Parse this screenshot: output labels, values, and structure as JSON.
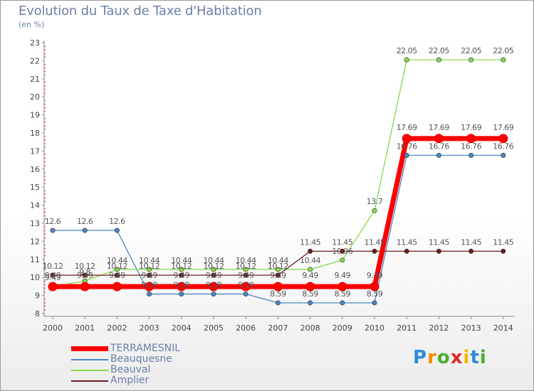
{
  "title": "Evolution du Taux de Taxe d'Habitation",
  "unit": "(en %)",
  "logo": "Proxiti",
  "chart_data": {
    "type": "line",
    "x": [
      "2000",
      "2001",
      "2002",
      "2003",
      "2004",
      "2005",
      "2006",
      "2007",
      "2008",
      "2009",
      "2010",
      "2011",
      "2012",
      "2013",
      "2014"
    ],
    "ylim": [
      8,
      23
    ],
    "yticks": [
      "8",
      "9",
      "10",
      "11",
      "12",
      "13",
      "14",
      "15",
      "16",
      "17",
      "18",
      "19",
      "20",
      "21",
      "22",
      "23"
    ],
    "grid": false,
    "legend_position": "bottom-left",
    "series": [
      {
        "name": "TERRAMESNIL",
        "color": "#ff0000",
        "width": 7,
        "values": [
          9.49,
          9.49,
          9.49,
          9.49,
          9.49,
          9.49,
          9.49,
          9.49,
          9.49,
          9.49,
          9.49,
          17.69,
          17.69,
          17.69,
          17.69
        ],
        "labels": [
          "9.49",
          "9.49",
          "9.49",
          "9.49",
          "9.49",
          "9.49",
          "9.49",
          "9.49",
          "9.49",
          "9.49",
          "9.49",
          "17.69",
          "17.69",
          "17.69",
          "17.69"
        ]
      },
      {
        "name": "Beauquesne",
        "color": "#4a86c8",
        "width": 1.3,
        "values": [
          12.6,
          12.6,
          12.6,
          9.08,
          9.08,
          9.08,
          9.08,
          8.59,
          8.59,
          8.59,
          8.59,
          16.76,
          16.76,
          16.76,
          16.76
        ],
        "labels": [
          "12.6",
          "12.6",
          "12.6",
          "9.08",
          "9.08",
          "9.08",
          "9.08",
          "8.59",
          "8.59",
          "8.59",
          "8.59",
          "16.76",
          "16.76",
          "16.76",
          "16.76"
        ]
      },
      {
        "name": "Beauval",
        "color": "#88d84a",
        "width": 1.3,
        "values": [
          9.49,
          9.8,
          10.44,
          10.44,
          10.44,
          10.44,
          10.44,
          10.44,
          10.44,
          10.96,
          13.7,
          22.05,
          22.05,
          22.05,
          22.05
        ],
        "labels": [
          "9.49",
          "9.8",
          "10.44",
          "10.44",
          "10.44",
          "10.44",
          "10.44",
          "10.44",
          "10.44",
          "10.96",
          "13.7",
          "22.05",
          "22.05",
          "22.05",
          "22.05"
        ]
      },
      {
        "name": "Amplier",
        "color": "#6b1e1e",
        "width": 1.3,
        "values": [
          10.12,
          10.12,
          10.12,
          10.12,
          10.12,
          10.12,
          10.12,
          10.12,
          11.45,
          11.45,
          11.45,
          11.45,
          11.45,
          11.45,
          11.45
        ],
        "labels": [
          "10.12",
          "10.12",
          "10.12",
          "10.12",
          "10.12",
          "10.12",
          "10.12",
          "10.12",
          "11.45",
          "11.45",
          "11.45",
          "11.45",
          "11.45",
          "11.45",
          "11.45"
        ]
      }
    ]
  }
}
